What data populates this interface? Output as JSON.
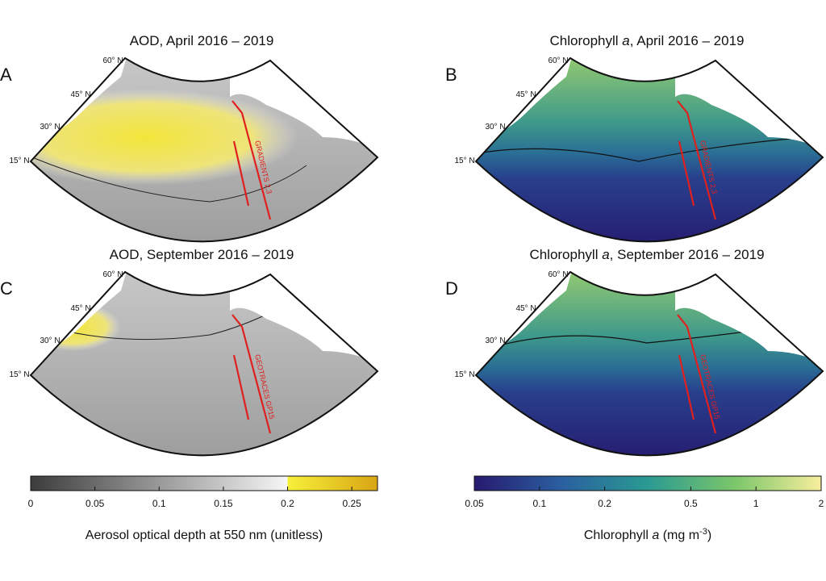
{
  "panels": [
    {
      "letter": "A",
      "title": [
        "AOD, April 2016 – 2019"
      ],
      "latitudes": [
        "60° N",
        "45° N",
        "30° N",
        "15° N"
      ],
      "track_label": "GRADIENTS 2,3"
    },
    {
      "letter": "B",
      "title": [
        "Chlorophyll ",
        "a",
        ", April 2016 – 2019"
      ],
      "latitudes": [
        "60° N",
        "45° N",
        "30° N",
        "15° N"
      ],
      "track_label": "GRADIENTS 2,3"
    },
    {
      "letter": "C",
      "title": [
        "AOD, September 2016 – 2019"
      ],
      "latitudes": [
        "60° N",
        "45° N",
        "30° N",
        "15° N"
      ],
      "track_label": "GEOTRACES GP15"
    },
    {
      "letter": "D",
      "title": [
        "Chlorophyll ",
        "a",
        ", September 2016 – 2019"
      ],
      "latitudes": [
        "60° N",
        "45° N",
        "30° N",
        "15° N"
      ],
      "track_label": "GEOTRACES GP15"
    }
  ],
  "colorbars": [
    {
      "lim": [
        0,
        0.27
      ],
      "ticks": [
        0,
        0.05,
        0.1,
        0.15,
        0.2,
        0.25
      ],
      "log": false,
      "label": [
        "Aerosol optical depth at 550 nm (unitless)"
      ]
    },
    {
      "lim": [
        0.05,
        2
      ],
      "ticks": [
        0.05,
        0.1,
        0.2,
        0.5,
        1,
        2
      ],
      "log": true,
      "label": [
        "Chlorophyll ",
        "a",
        " (mg m",
        "-3",
        ")"
      ]
    }
  ]
}
